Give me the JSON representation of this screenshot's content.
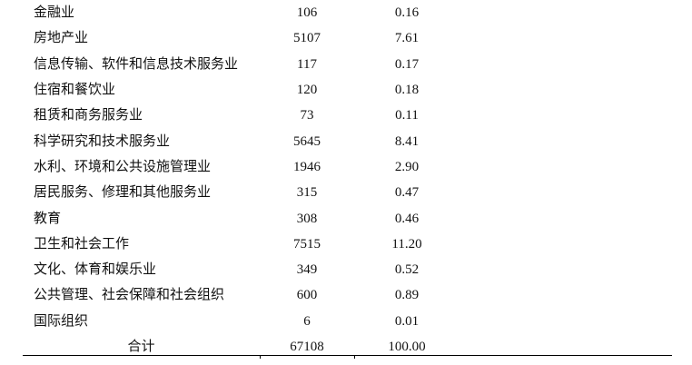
{
  "table": {
    "rows": [
      {
        "name": "金融业",
        "count": "106",
        "percent": "0.16"
      },
      {
        "name": "房地产业",
        "count": "5107",
        "percent": "7.61"
      },
      {
        "name": "信息传输、软件和信息技术服务业",
        "count": "117",
        "percent": "0.17"
      },
      {
        "name": "住宿和餐饮业",
        "count": "120",
        "percent": "0.18"
      },
      {
        "name": "租赁和商务服务业",
        "count": "73",
        "percent": "0.11"
      },
      {
        "name": "科学研究和技术服务业",
        "count": "5645",
        "percent": "8.41"
      },
      {
        "name": "水利、环境和公共设施管理业",
        "count": "1946",
        "percent": "2.90"
      },
      {
        "name": "居民服务、修理和其他服务业",
        "count": "315",
        "percent": "0.47"
      },
      {
        "name": "教育",
        "count": "308",
        "percent": "0.46"
      },
      {
        "name": "卫生和社会工作",
        "count": "7515",
        "percent": "11.20"
      },
      {
        "name": "文化、体育和娱乐业",
        "count": "349",
        "percent": "0.52"
      },
      {
        "name": "公共管理、社会保障和社会组织",
        "count": "600",
        "percent": "0.89"
      },
      {
        "name": "国际组织",
        "count": "6",
        "percent": "0.01"
      }
    ],
    "total": {
      "name": "合计",
      "count": "67108",
      "percent": "100.00"
    }
  }
}
